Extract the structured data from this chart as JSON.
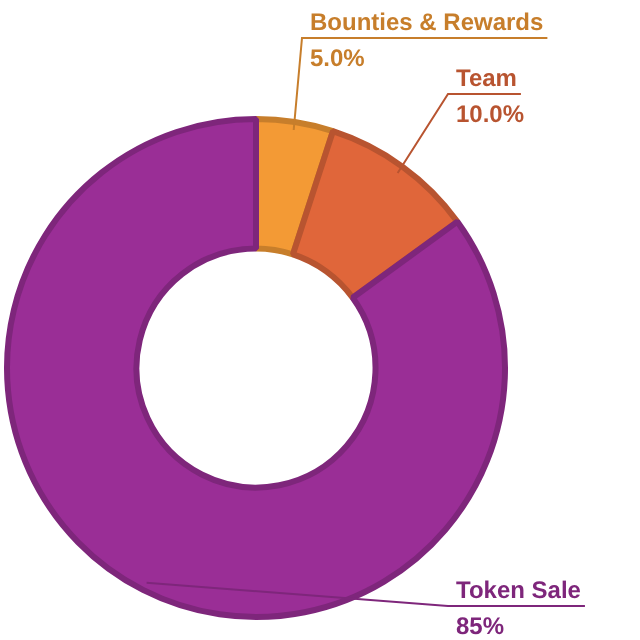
{
  "chart_data": {
    "type": "donut",
    "categories": [
      "Bounties & Rewards",
      "Team",
      "Token Sale"
    ],
    "values": [
      5.0,
      10.0,
      85
    ],
    "colors": [
      "#f39a35",
      "#e0663a",
      "#9a2e96"
    ],
    "value_labels": [
      "5.0%",
      "10.0%",
      "85%"
    ],
    "legend": false
  }
}
